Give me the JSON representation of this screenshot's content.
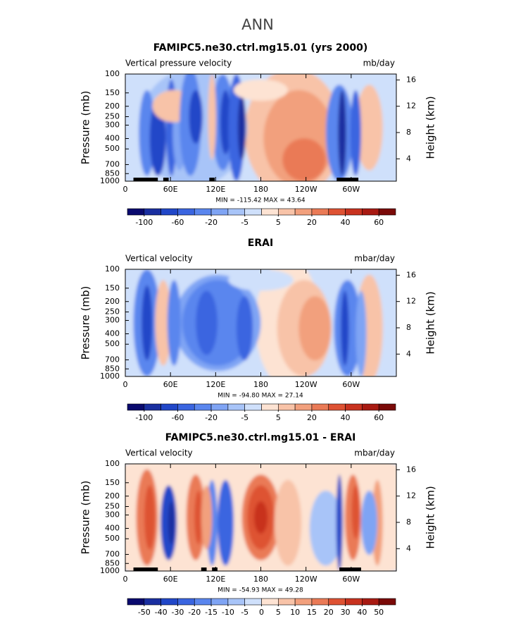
{
  "suptitle": "ANN",
  "chart_data": [
    {
      "type": "contour",
      "title": "FAMIPC5.ne30.ctrl.mg15.01 (yrs 2000)",
      "left_label": "Vertical pressure velocity",
      "right_label": "mb/day",
      "ylabel": "Pressure (mb)",
      "y2label": "Height (km)",
      "log_y": true,
      "ylim": [
        1000,
        100
      ],
      "yticks": [
        100,
        150,
        200,
        250,
        300,
        400,
        500,
        700,
        850,
        1000
      ],
      "y2lim": [
        0.6,
        16.9
      ],
      "y2ticks": [
        4,
        8,
        12,
        16
      ],
      "xlim": [
        0,
        360
      ],
      "xticks": [
        0,
        {
          "value": 60,
          "label": "60E"
        },
        {
          "value": 120,
          "label": "120E"
        },
        180,
        {
          "value": 240,
          "label": "120W"
        },
        {
          "value": 300,
          "label": "60W"
        }
      ],
      "min_max": "MIN = -115.42   MAX =  43.64",
      "cbar_ticks": [
        -100,
        -60,
        -20,
        -5,
        5,
        20,
        40,
        60
      ],
      "cbar_colors": [
        "#0a0a6e",
        "#1a2fa0",
        "#2147c8",
        "#3a65e0",
        "#5a86ee",
        "#7fa4f4",
        "#a8c4f8",
        "#cfe0fb",
        "#fde3d3",
        "#f8c3a8",
        "#f2a07d",
        "#ea7a56",
        "#de5233",
        "#c8321f",
        "#a81a12",
        "#7a0a08"
      ]
    },
    {
      "type": "contour",
      "title": "ERAI",
      "left_label": "Vertical velocity",
      "right_label": "mbar/day",
      "ylabel": "Pressure (mb)",
      "y2label": "Height (km)",
      "log_y": true,
      "ylim": [
        1000,
        100
      ],
      "yticks": [
        100,
        150,
        200,
        250,
        300,
        400,
        500,
        700,
        850,
        1000
      ],
      "y2lim": [
        0.6,
        16.9
      ],
      "y2ticks": [
        4,
        8,
        12,
        16
      ],
      "xlim": [
        0,
        360
      ],
      "xticks": [
        0,
        {
          "value": 60,
          "label": "60E"
        },
        {
          "value": 120,
          "label": "120E"
        },
        180,
        {
          "value": 240,
          "label": "120W"
        },
        {
          "value": 300,
          "label": "60W"
        }
      ],
      "min_max": "MIN = -94.80   MAX =  27.14",
      "cbar_ticks": [
        -100,
        -60,
        -20,
        -5,
        5,
        20,
        40,
        60
      ],
      "cbar_colors": [
        "#0a0a6e",
        "#1a2fa0",
        "#2147c8",
        "#3a65e0",
        "#5a86ee",
        "#7fa4f4",
        "#a8c4f8",
        "#cfe0fb",
        "#fde3d3",
        "#f8c3a8",
        "#f2a07d",
        "#ea7a56",
        "#de5233",
        "#c8321f",
        "#a81a12",
        "#7a0a08"
      ]
    },
    {
      "type": "contour",
      "title": "FAMIPC5.ne30.ctrl.mg15.01 - ERAI",
      "left_label": "Vertical velocity",
      "right_label": "mbar/day",
      "ylabel": "Pressure (mb)",
      "y2label": "Height (km)",
      "log_y": true,
      "ylim": [
        1000,
        100
      ],
      "yticks": [
        100,
        150,
        200,
        250,
        300,
        400,
        500,
        700,
        850,
        1000
      ],
      "y2lim": [
        0.6,
        16.9
      ],
      "y2ticks": [
        4,
        8,
        12,
        16
      ],
      "xlim": [
        0,
        360
      ],
      "xticks": [
        0,
        {
          "value": 60,
          "label": "60E"
        },
        {
          "value": 120,
          "label": "120E"
        },
        180,
        {
          "value": 240,
          "label": "120W"
        },
        {
          "value": 300,
          "label": "60W"
        }
      ],
      "min_max": "MIN = -54.93   MAX =  49.28",
      "cbar_ticks": [
        -50,
        -40,
        -30,
        -20,
        -15,
        -10,
        -5,
        0,
        5,
        10,
        15,
        20,
        30,
        40,
        50
      ],
      "cbar_colors": [
        "#0a0a6e",
        "#1a2fa0",
        "#2147c8",
        "#3a65e0",
        "#5a86ee",
        "#7fa4f4",
        "#a8c4f8",
        "#cfe0fb",
        "#fde3d3",
        "#f8c3a8",
        "#f2a07d",
        "#ea7a56",
        "#de5233",
        "#c8321f",
        "#a81a12",
        "#7a0a08"
      ]
    }
  ]
}
